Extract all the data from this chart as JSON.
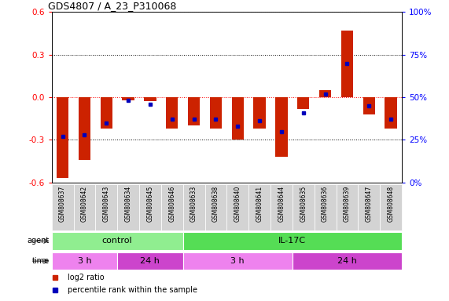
{
  "title": "GDS4807 / A_23_P310068",
  "samples": [
    "GSM808637",
    "GSM808642",
    "GSM808643",
    "GSM808634",
    "GSM808645",
    "GSM808646",
    "GSM808633",
    "GSM808638",
    "GSM808640",
    "GSM808641",
    "GSM808644",
    "GSM808635",
    "GSM808636",
    "GSM808639",
    "GSM808647",
    "GSM808648"
  ],
  "log2_ratio": [
    -0.57,
    -0.44,
    -0.22,
    -0.02,
    -0.03,
    -0.22,
    -0.2,
    -0.22,
    -0.3,
    -0.22,
    -0.42,
    -0.08,
    0.05,
    0.47,
    -0.12,
    -0.22
  ],
  "percentile": [
    27,
    28,
    35,
    48,
    46,
    37,
    37,
    37,
    33,
    36,
    30,
    41,
    52,
    70,
    45,
    37
  ],
  "agent_groups": [
    {
      "label": "control",
      "start": 0,
      "end": 6,
      "color": "#90EE90"
    },
    {
      "label": "IL-17C",
      "start": 6,
      "end": 16,
      "color": "#55DD55"
    }
  ],
  "time_groups": [
    {
      "label": "3 h",
      "start": 0,
      "end": 3,
      "color": "#EE82EE"
    },
    {
      "label": "24 h",
      "start": 3,
      "end": 6,
      "color": "#CC44CC"
    },
    {
      "label": "3 h",
      "start": 6,
      "end": 11,
      "color": "#EE82EE"
    },
    {
      "label": "24 h",
      "start": 11,
      "end": 16,
      "color": "#CC44CC"
    }
  ],
  "ylim": [
    -0.6,
    0.6
  ],
  "yticks_left": [
    -0.6,
    -0.3,
    0.0,
    0.3,
    0.6
  ],
  "right_tick_labels": [
    "0%",
    "25%",
    "50%",
    "75%",
    "100%"
  ],
  "bar_color": "#CC2200",
  "dot_color": "#0000BB",
  "background_color": "#ffffff",
  "legend_items": [
    {
      "label": "log2 ratio",
      "color": "#CC2200"
    },
    {
      "label": "percentile rank within the sample",
      "color": "#0000BB"
    }
  ]
}
